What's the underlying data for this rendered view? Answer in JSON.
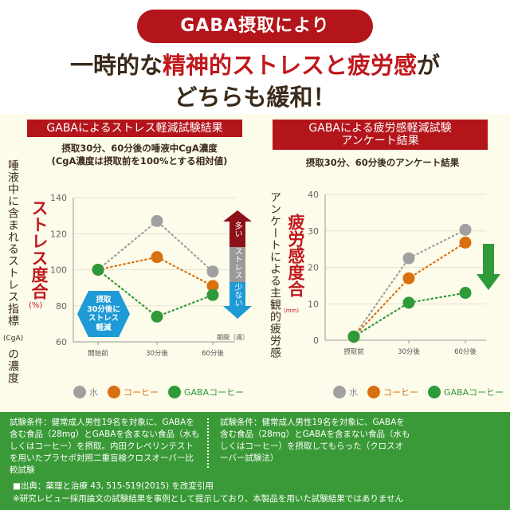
{
  "header": {
    "pill": "GABA摂取により",
    "headline_line1_pre": "一時的な",
    "headline_line1_red": "精神的ストレスと疲労感",
    "headline_line1_post": "が",
    "headline_line2": "どちらも緩和！"
  },
  "colors": {
    "water": "#a0a0a0",
    "coffee": "#d9700f",
    "gaba": "#2f9a3a",
    "accent_red": "#b3151b",
    "badge_blue": "#1e9ad6"
  },
  "legend": {
    "water": "水",
    "coffee": "コーヒー",
    "gaba": "GABAコーヒー"
  },
  "left": {
    "title": "GABAによるストレス軽減試験結果",
    "subtitle1": "摂取30分、60分後の唾液中CgA濃度",
    "subtitle2": "(CgA濃度は摂取前を100%とする相対値)",
    "ylabel_outer": "唾液中に含まれるストレス指標",
    "ylabel_cga": "(CgA)",
    "ylabel_outer2": "の濃度",
    "ylabel_red": "ストレス度合",
    "ylabel_unit": "(%)",
    "badge": [
      "摂取",
      "30分後に",
      "ストレス",
      "軽減"
    ],
    "xunit": "期間（週）",
    "arrow_top": "多い",
    "arrow_mid": "ストレス",
    "arrow_bot": "少ない"
  },
  "right": {
    "title1": "GABAによる疲労感軽減試験",
    "title2": "アンケート結果",
    "subtitle": "摂取30分、60分後のアンケート結果",
    "ylabel_outer": "アンケートによる主観的疲労感",
    "ylabel_red": "疲労感度合",
    "ylabel_unit": "(mm)"
  },
  "chart_data": [
    {
      "type": "line",
      "categories": [
        "開始前",
        "30分後",
        "60分後"
      ],
      "yticks": [
        60,
        80,
        100,
        120,
        140
      ],
      "ylim": [
        60,
        140
      ],
      "grid": true,
      "legend_placement": "bottom",
      "series": [
        {
          "name": "水",
          "values": [
            100,
            127,
            99
          ]
        },
        {
          "name": "コーヒー",
          "values": [
            100,
            107,
            91
          ]
        },
        {
          "name": "GABAコーヒー",
          "values": [
            100,
            74,
            86
          ]
        }
      ]
    },
    {
      "type": "line",
      "categories": [
        "摂取前",
        "30分後",
        "60分後"
      ],
      "yticks": [
        0,
        10,
        20,
        30,
        40
      ],
      "ylim": [
        0,
        40
      ],
      "grid": true,
      "legend_placement": "bottom",
      "series": [
        {
          "name": "水",
          "values": [
            1,
            22.5,
            30.3
          ]
        },
        {
          "name": "コーヒー",
          "values": [
            1,
            17,
            26.8
          ]
        },
        {
          "name": "GABAコーヒー",
          "values": [
            1,
            10.3,
            13
          ]
        }
      ]
    }
  ],
  "footer": {
    "left": "試験条件：健常成人男性19名を対象に、GABAを含む食品（28mg）とGABAを含まない食品（水もしくはコーヒー）を摂取。内田クレペリンテストを用いたプラセボ対照二重盲検クロスオーバー比較試験",
    "right": "試験条件：健常成人男性19名を対象に、GABAを含む食品（28mg）とGABAを含まない食品（水もしくはコーヒー）を摂取してもらった（クロスオーバー試験法）",
    "source": "■出典：薬理と治療 43, 515-519(2015) を改変引用",
    "note": "※研究レビュー採用論文の試験結果を事例として提示しており、本製品を用いた試験結果ではありません"
  }
}
